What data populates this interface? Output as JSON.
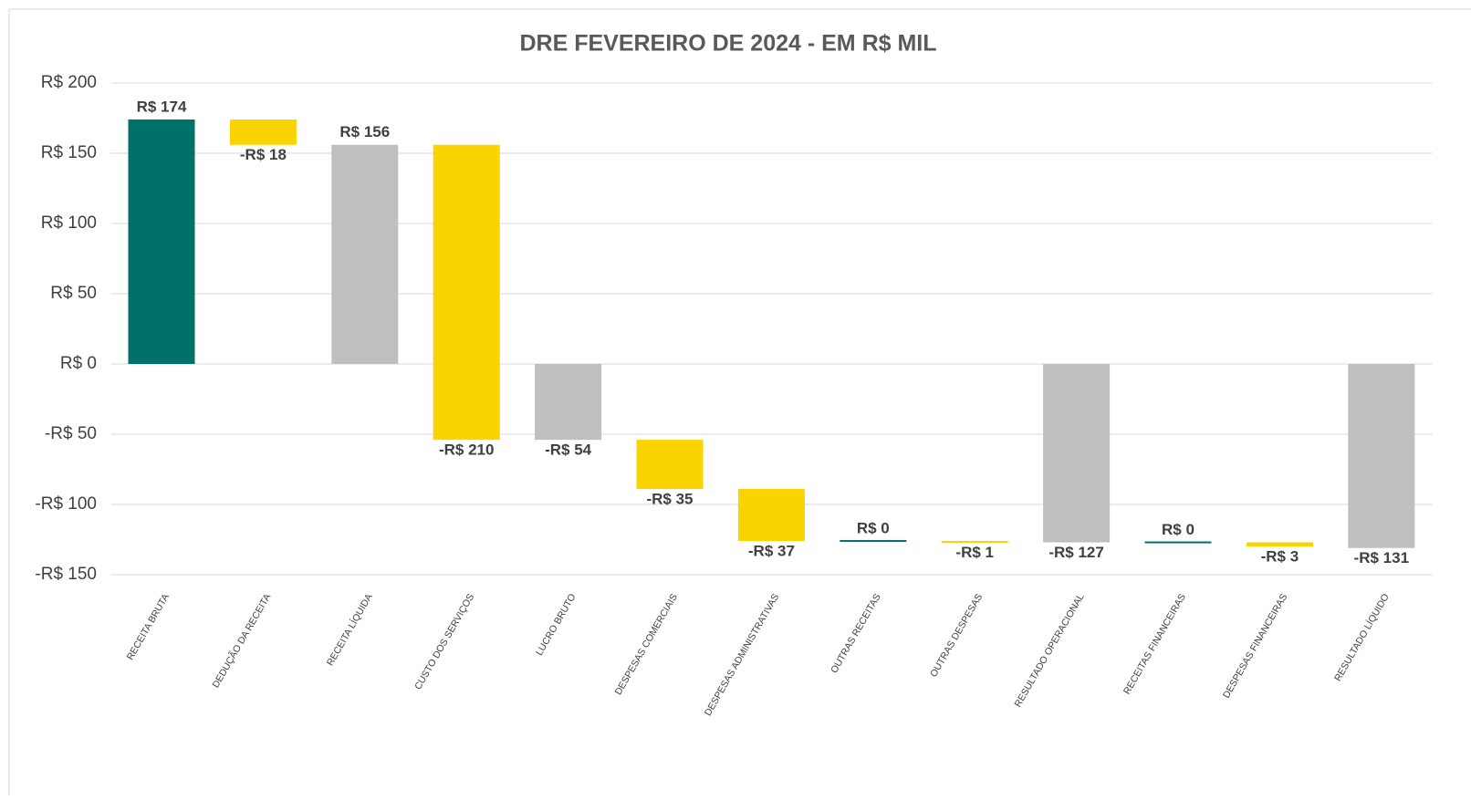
{
  "chart_data": {
    "type": "waterfall",
    "title": "DRE FEVEREIRO DE 2024 - EM R$ MIL",
    "categories": [
      "RECEITA BRUTA",
      "DEDUÇÃO DA RECEITA",
      "RECEITA LÍQUIDA",
      "CUSTO DOS SERVIÇOS",
      "LUCRO BRUTO",
      "DESPESAS COMERCIAIS",
      "DESPESAS ADMINISTRATIVAS",
      "OUTRAS RECEITAS",
      "OUTRAS DESPESAS",
      "RESULTADO OPERACIONAL",
      "RECEITAS FINANCEIRAS",
      "DESPESAS FINANCEIRAS",
      "RESULTADO LÍQUIDO"
    ],
    "values": [
      174,
      -18,
      156,
      -210,
      -54,
      -35,
      -37,
      0,
      -1,
      -127,
      0,
      -3,
      -131
    ],
    "value_labels": [
      "R$ 174",
      "-R$ 18",
      "R$ 156",
      "-R$ 210",
      "-R$ 54",
      "-R$ 35",
      "-R$ 37",
      "R$ 0",
      "-R$ 1",
      "-R$ 127",
      "R$ 0",
      "-R$ 3",
      "-R$ 131"
    ],
    "is_total": [
      false,
      false,
      true,
      false,
      true,
      false,
      false,
      false,
      false,
      true,
      false,
      false,
      true
    ],
    "increase_color": "#007168",
    "decrease_color": "#f9d400",
    "total_color": "#bfbfbf",
    "ylim": [
      -150,
      200
    ],
    "yticks": [
      {
        "value": -150,
        "label": "-R$ 150"
      },
      {
        "value": -100,
        "label": "-R$ 100"
      },
      {
        "value": -50,
        "label": "-R$ 50"
      },
      {
        "value": 0,
        "label": "R$ 0"
      },
      {
        "value": 50,
        "label": "R$ 50"
      },
      {
        "value": 100,
        "label": "R$ 100"
      },
      {
        "value": 150,
        "label": "R$ 150"
      },
      {
        "value": 200,
        "label": "R$ 200"
      }
    ],
    "grid": true
  }
}
